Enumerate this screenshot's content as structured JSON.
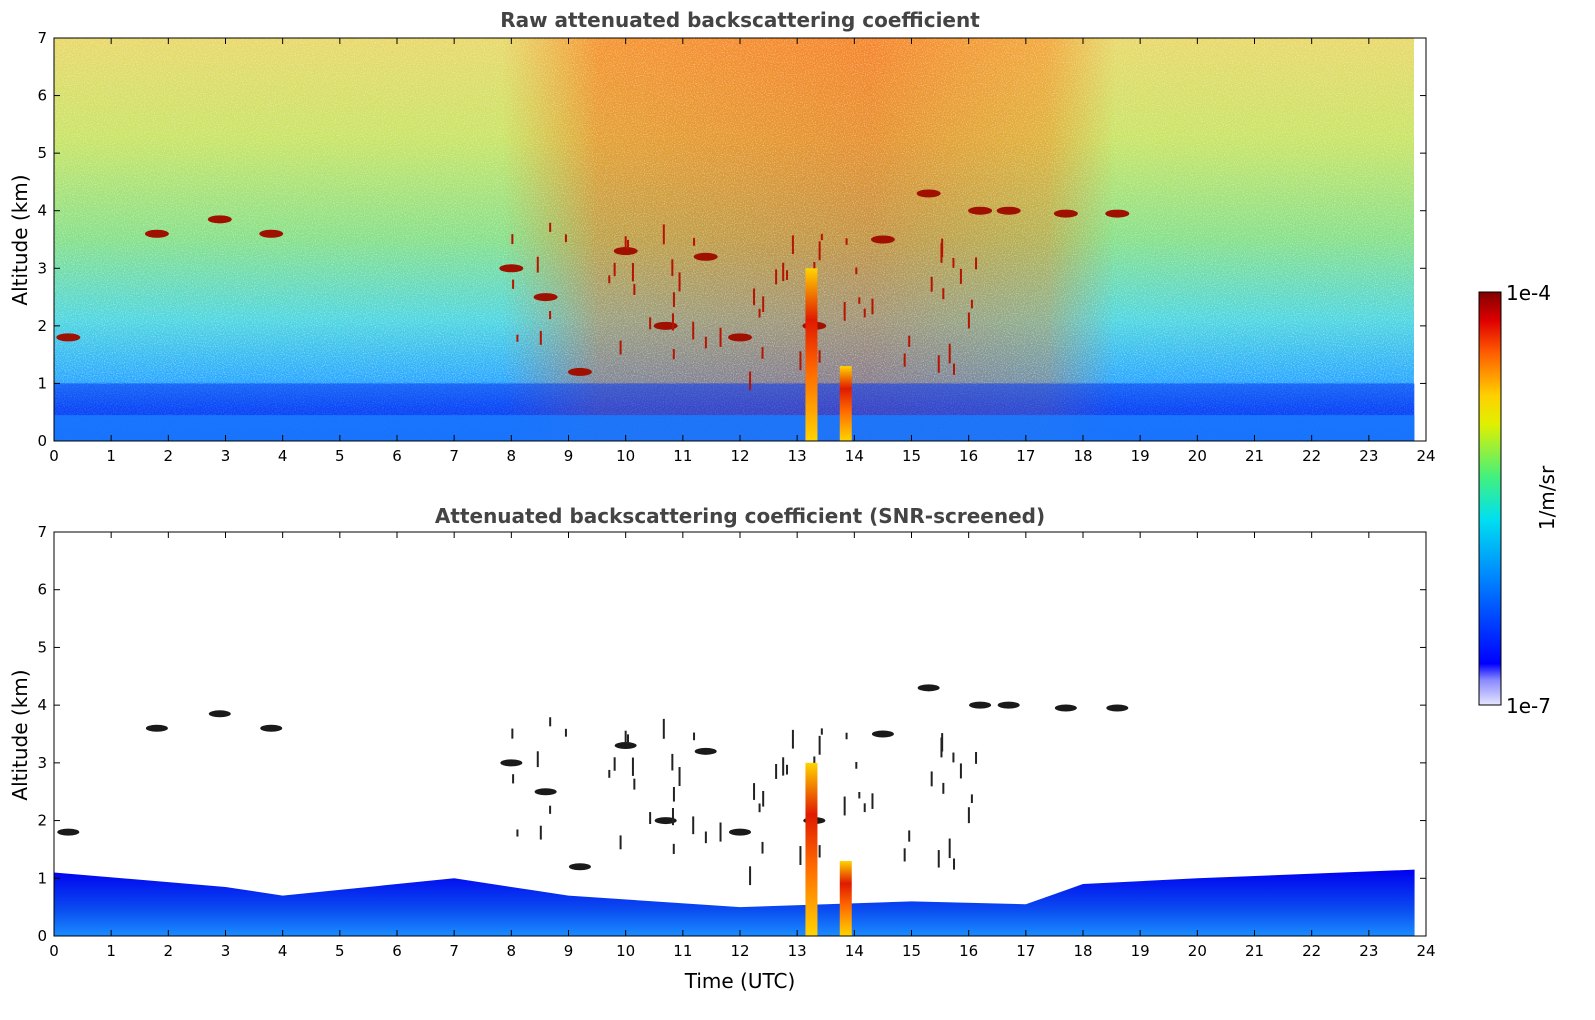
{
  "chart_data": [
    {
      "type": "heatmap",
      "title": "Raw attenuated backscattering coefficient",
      "xlabel": "",
      "ylabel": "Altitude (km)",
      "xlim": [
        0,
        24
      ],
      "ylim": [
        0,
        7
      ],
      "xticks": [
        "0",
        "1",
        "2",
        "3",
        "4",
        "5",
        "6",
        "7",
        "8",
        "9",
        "10",
        "11",
        "12",
        "13",
        "14",
        "15",
        "16",
        "17",
        "18",
        "19",
        "20",
        "21",
        "22",
        "23",
        "24"
      ],
      "yticks": [
        "0",
        "1",
        "2",
        "3",
        "4",
        "5",
        "6",
        "7"
      ],
      "data_end_time": 23.8,
      "features": {
        "near_surface_layer_top_km": 1.0,
        "cloud_patches": [
          {
            "t": 0.25,
            "alt": 1.8
          },
          {
            "t": 1.8,
            "alt": 3.6
          },
          {
            "t": 2.9,
            "alt": 3.85
          },
          {
            "t": 3.8,
            "alt": 3.6
          },
          {
            "t": 8.0,
            "alt": 3.0
          },
          {
            "t": 8.6,
            "alt": 2.5
          },
          {
            "t": 9.2,
            "alt": 1.2
          },
          {
            "t": 10.0,
            "alt": 3.3
          },
          {
            "t": 10.7,
            "alt": 2.0
          },
          {
            "t": 11.4,
            "alt": 3.2
          },
          {
            "t": 12.0,
            "alt": 1.8
          },
          {
            "t": 13.3,
            "alt": 2.0
          },
          {
            "t": 14.5,
            "alt": 3.5
          },
          {
            "t": 15.3,
            "alt": 4.3
          },
          {
            "t": 16.2,
            "alt": 4.0
          },
          {
            "t": 16.7,
            "alt": 4.0
          },
          {
            "t": 17.7,
            "alt": 3.95
          },
          {
            "t": 18.6,
            "alt": 3.95
          }
        ],
        "strong_columns": [
          {
            "t": 13.25,
            "top": 3.0
          },
          {
            "t": 13.85,
            "top": 1.3
          }
        ]
      }
    },
    {
      "type": "heatmap",
      "title": "Attenuated backscattering coefficient (SNR-screened)",
      "xlabel": "Time (UTC)",
      "ylabel": "Altitude (km)",
      "xlim": [
        0,
        24
      ],
      "ylim": [
        0,
        7
      ],
      "xticks": [
        "0",
        "1",
        "2",
        "3",
        "4",
        "5",
        "6",
        "7",
        "8",
        "9",
        "10",
        "11",
        "12",
        "13",
        "14",
        "15",
        "16",
        "17",
        "18",
        "19",
        "20",
        "21",
        "22",
        "23",
        "24"
      ],
      "yticks": [
        "0",
        "1",
        "2",
        "3",
        "4",
        "5",
        "6",
        "7"
      ],
      "data_end_time": 23.8,
      "features": {
        "boundary_layer_top_km": [
          {
            "t": 0,
            "alt": 1.1
          },
          {
            "t": 3,
            "alt": 0.85
          },
          {
            "t": 4,
            "alt": 0.7
          },
          {
            "t": 6,
            "alt": 0.9
          },
          {
            "t": 7,
            "alt": 1.0
          },
          {
            "t": 9,
            "alt": 0.7
          },
          {
            "t": 12,
            "alt": 0.5
          },
          {
            "t": 15,
            "alt": 0.6
          },
          {
            "t": 17,
            "alt": 0.55
          },
          {
            "t": 18,
            "alt": 0.9
          },
          {
            "t": 20,
            "alt": 1.0
          },
          {
            "t": 23.8,
            "alt": 1.15
          }
        ]
      }
    }
  ],
  "colorbar": {
    "label": "1/m/sr",
    "max_label": "1e-4",
    "min_label": "1e-7",
    "scale": "log",
    "colormap": "jet"
  }
}
